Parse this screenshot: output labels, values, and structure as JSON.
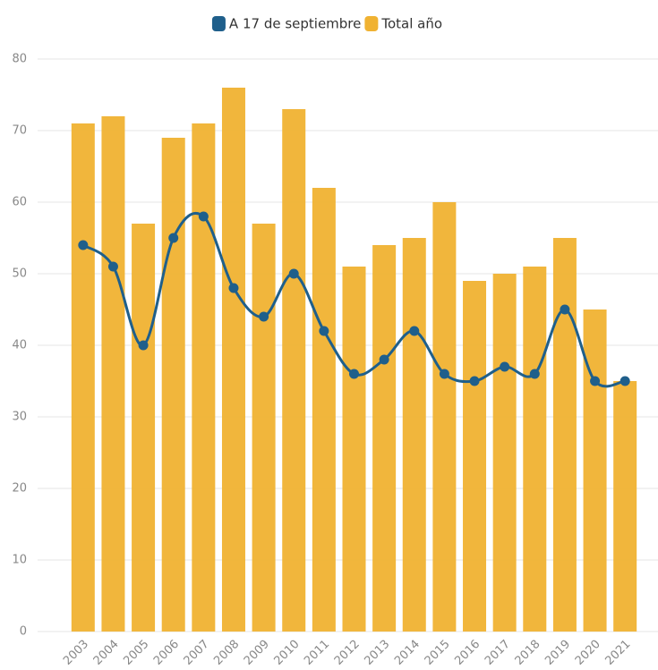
{
  "chart_data": {
    "type": "bar",
    "categories": [
      "2003",
      "2004",
      "2005",
      "2006",
      "2007",
      "2008",
      "2009",
      "2010",
      "2011",
      "2012",
      "2013",
      "2014",
      "2015",
      "2016",
      "2017",
      "2018",
      "2019",
      "2020",
      "2021"
    ],
    "series": [
      {
        "name": "A 17 de septiembre",
        "type": "line",
        "color": "#1f5f8b",
        "values": [
          54,
          51,
          40,
          55,
          58,
          48,
          44,
          50,
          42,
          36,
          38,
          42,
          36,
          35,
          37,
          36,
          45,
          35,
          35
        ]
      },
      {
        "name": "Total año",
        "type": "bar",
        "color": "#f0b232",
        "values": [
          71,
          72,
          57,
          69,
          71,
          76,
          57,
          73,
          62,
          51,
          54,
          55,
          60,
          49,
          50,
          51,
          55,
          45,
          35
        ]
      }
    ],
    "ylim": [
      0,
      80
    ],
    "yticks": [
      0,
      10,
      20,
      30,
      40,
      50,
      60,
      70,
      80
    ],
    "grid": true
  }
}
